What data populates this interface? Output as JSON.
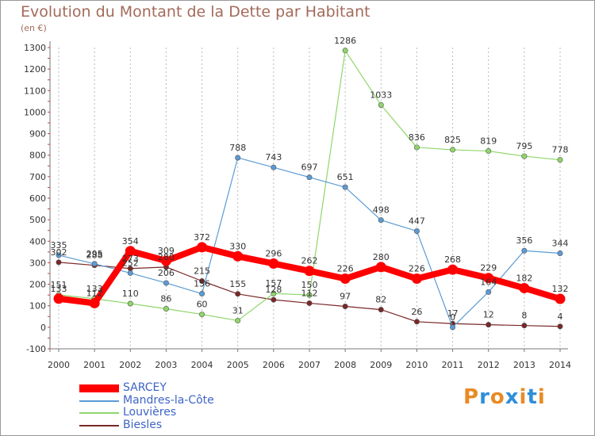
{
  "chart_data": {
    "type": "line",
    "title": "Evolution du Montant de la Dette par Habitant",
    "unit_label": "(en €)",
    "x": [
      "2000",
      "2001",
      "2002",
      "2003",
      "2004",
      "2005",
      "2006",
      "2007",
      "2008",
      "2009",
      "2010",
      "2011",
      "2012",
      "2013",
      "2014"
    ],
    "ylim": [
      -100,
      1300
    ],
    "yticks": [
      -100,
      0,
      100,
      200,
      300,
      400,
      500,
      600,
      700,
      800,
      900,
      1000,
      1100,
      1200,
      1300
    ],
    "grid": "vertical-dashed",
    "legend_position": "bottom-left",
    "series": [
      {
        "name": "SARCEY",
        "color": "#ff0000",
        "values": [
          133,
          112,
          354,
          309,
          372,
          330,
          296,
          262,
          226,
          280,
          226,
          268,
          229,
          182,
          132
        ]
      },
      {
        "name": "Mandres-la-Côte",
        "color": "#5b9bd5",
        "values": [
          335,
          295,
          252,
          206,
          156,
          788,
          743,
          697,
          651,
          498,
          447,
          0,
          164,
          356,
          344
        ]
      },
      {
        "name": "Louvières",
        "color": "#8fd66a",
        "values": [
          151,
          133,
          110,
          86,
          60,
          31,
          157,
          150,
          1286,
          1033,
          836,
          825,
          819,
          795,
          778
        ]
      },
      {
        "name": "Biesles",
        "color": "#7a2828",
        "values": [
          302,
          288,
          273,
          280,
          215,
          155,
          128,
          112,
          97,
          82,
          26,
          17,
          12,
          8,
          4
        ]
      }
    ]
  },
  "logo": {
    "text": "Proxiti",
    "colors": [
      "#e88b25",
      "#2f8fd8",
      "#e88b25",
      "#2f8fd8",
      "#e88b25",
      "#2f8fd8",
      "#e88b25"
    ]
  }
}
